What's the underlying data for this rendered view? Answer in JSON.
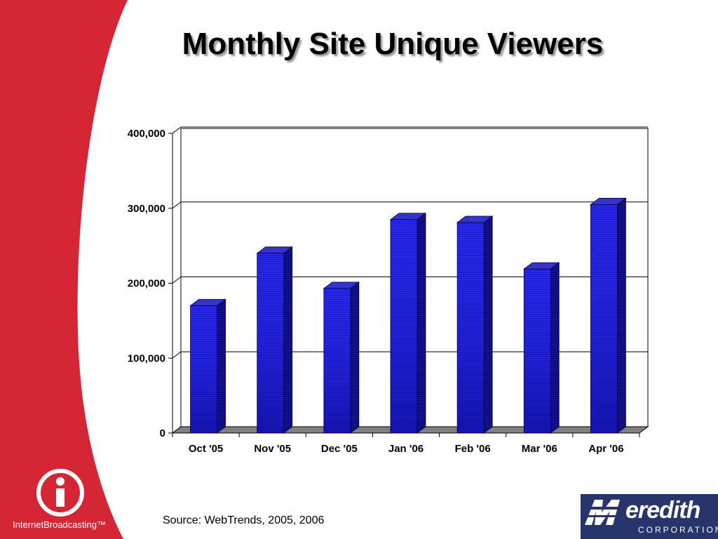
{
  "slide": {
    "colors": {
      "brand_red": "#d42634",
      "bar_blue": "#1a1ad8",
      "meredith_navy": "#27356c"
    },
    "source_note": "Source: WebTrends, 2005, 2006",
    "logos": {
      "left": {
        "brand_text": "InternetBroadcasting™",
        "icon": "info-i-logo"
      },
      "right": {
        "word": "eredith",
        "sub": "CORPORATION",
        "icon": "meredith-m-logo"
      }
    }
  },
  "chart_data": {
    "type": "bar",
    "title": "Monthly Site Unique Viewers",
    "categories": [
      "Oct '05",
      "Nov '05",
      "Dec '05",
      "Jan '06",
      "Feb '06",
      "Mar '06",
      "Apr '06"
    ],
    "values": [
      170000,
      240000,
      193000,
      285000,
      281000,
      219000,
      305000
    ],
    "xlabel": "",
    "ylabel": "",
    "ylim": [
      0,
      400000
    ],
    "yticks": [
      "0",
      "100,000",
      "200,000",
      "300,000",
      "400,000"
    ],
    "grid": true,
    "legend": "none",
    "style": "3d"
  }
}
